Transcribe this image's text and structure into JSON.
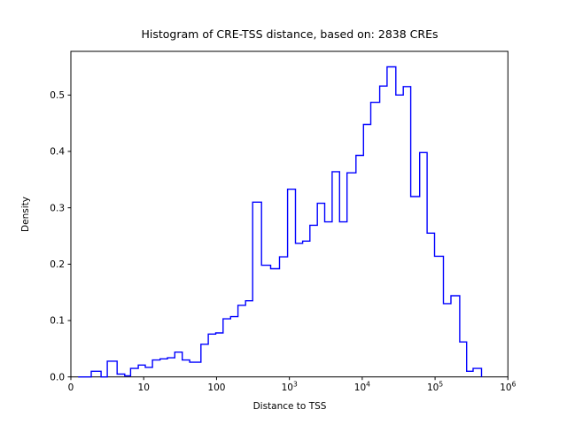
{
  "chart_data": {
    "type": "histogram",
    "histtype": "step",
    "title": "Histogram of CRE-TSS distance, based on: 2838 CREs",
    "n_cres": 2838,
    "xlabel": "Distance to TSS",
    "ylabel": "Density",
    "line_color": "#0000ff",
    "axis_color": "#000000",
    "background_color": "#ffffff",
    "x_scale": "symlog",
    "x_linear_threshold": 10,
    "xlim": [
      0,
      1000000
    ],
    "ylim": [
      0,
      0.5775
    ],
    "grid": false,
    "legend": "none",
    "xticks": [
      {
        "value": 0,
        "base": "0",
        "exp": ""
      },
      {
        "value": 10,
        "base": "10",
        "exp": ""
      },
      {
        "value": 100,
        "base": "100",
        "exp": ""
      },
      {
        "value": 1000,
        "base": "10",
        "exp": "3"
      },
      {
        "value": 10000,
        "base": "10",
        "exp": "4"
      },
      {
        "value": 100000,
        "base": "10",
        "exp": "5"
      },
      {
        "value": 1000000,
        "base": "10",
        "exp": "6"
      }
    ],
    "yticks": [
      {
        "value": 0.0,
        "label": "0.0"
      },
      {
        "value": 0.1,
        "label": "0.1"
      },
      {
        "value": 0.2,
        "label": "0.2"
      },
      {
        "value": 0.3,
        "label": "0.3"
      },
      {
        "value": 0.4,
        "label": "0.4"
      },
      {
        "value": 0.5,
        "label": "0.5"
      }
    ],
    "bins": [
      {
        "from": 1,
        "to": 2.8,
        "density": 0.0
      },
      {
        "from": 2.8,
        "to": 4.15,
        "density": 0.01
      },
      {
        "from": 4.15,
        "to": 5.0,
        "density": 0.0
      },
      {
        "from": 5.0,
        "to": 6.35,
        "density": 0.028
      },
      {
        "from": 6.35,
        "to": 7.4,
        "density": 0.005
      },
      {
        "from": 7.4,
        "to": 8.2,
        "density": 0.002
      },
      {
        "from": 8.2,
        "to": 9.25,
        "density": 0.015
      },
      {
        "from": 9.25,
        "to": 10.5,
        "density": 0.021
      },
      {
        "from": 10.5,
        "to": 13.2,
        "density": 0.017
      },
      {
        "from": 13.2,
        "to": 16.8,
        "density": 0.03
      },
      {
        "from": 16.8,
        "to": 21.2,
        "density": 0.032
      },
      {
        "from": 21.2,
        "to": 26.7,
        "density": 0.034
      },
      {
        "from": 26.7,
        "to": 33.8,
        "density": 0.044
      },
      {
        "from": 33.8,
        "to": 42.8,
        "density": 0.03
      },
      {
        "from": 42.8,
        "to": 61,
        "density": 0.026
      },
      {
        "from": 61,
        "to": 77,
        "density": 0.058
      },
      {
        "from": 77,
        "to": 97.5,
        "density": 0.076
      },
      {
        "from": 97.5,
        "to": 123,
        "density": 0.078
      },
      {
        "from": 123,
        "to": 156,
        "density": 0.103
      },
      {
        "from": 156,
        "to": 197,
        "density": 0.107
      },
      {
        "from": 197,
        "to": 250,
        "density": 0.127
      },
      {
        "from": 250,
        "to": 313,
        "density": 0.135
      },
      {
        "from": 313,
        "to": 414,
        "density": 0.31
      },
      {
        "from": 414,
        "to": 553,
        "density": 0.198
      },
      {
        "from": 553,
        "to": 732,
        "density": 0.192
      },
      {
        "from": 732,
        "to": 943,
        "density": 0.213
      },
      {
        "from": 943,
        "to": 1210,
        "density": 0.333
      },
      {
        "from": 1210,
        "to": 1520,
        "density": 0.237
      },
      {
        "from": 1520,
        "to": 1910,
        "density": 0.241
      },
      {
        "from": 1910,
        "to": 2420,
        "density": 0.269
      },
      {
        "from": 2420,
        "to": 3050,
        "density": 0.308
      },
      {
        "from": 3050,
        "to": 3860,
        "density": 0.275
      },
      {
        "from": 3860,
        "to": 4890,
        "density": 0.364
      },
      {
        "from": 4890,
        "to": 6180,
        "density": 0.275
      },
      {
        "from": 6180,
        "to": 8210,
        "density": 0.362
      },
      {
        "from": 8210,
        "to": 10400,
        "density": 0.393
      },
      {
        "from": 10400,
        "to": 13100,
        "density": 0.448
      },
      {
        "from": 13100,
        "to": 17400,
        "density": 0.487
      },
      {
        "from": 17400,
        "to": 21900,
        "density": 0.516
      },
      {
        "from": 21900,
        "to": 28900,
        "density": 0.55
      },
      {
        "from": 28900,
        "to": 36600,
        "density": 0.5
      },
      {
        "from": 36600,
        "to": 46300,
        "density": 0.515
      },
      {
        "from": 46300,
        "to": 61400,
        "density": 0.32
      },
      {
        "from": 61400,
        "to": 77800,
        "density": 0.398
      },
      {
        "from": 77800,
        "to": 98400,
        "density": 0.255
      },
      {
        "from": 98400,
        "to": 130000,
        "density": 0.214
      },
      {
        "from": 130000,
        "to": 165000,
        "density": 0.13
      },
      {
        "from": 165000,
        "to": 218000,
        "density": 0.144
      },
      {
        "from": 218000,
        "to": 271000,
        "density": 0.062
      },
      {
        "from": 271000,
        "to": 333000,
        "density": 0.01
      },
      {
        "from": 333000,
        "to": 434000,
        "density": 0.015
      }
    ]
  }
}
